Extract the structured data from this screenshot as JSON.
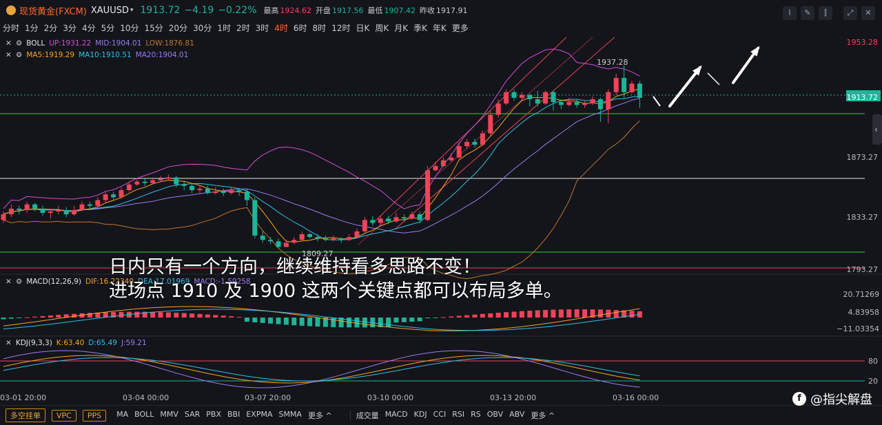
{
  "header": {
    "symbol_name": "现货黄金(FXCM)",
    "symbol_code": "XAUUSD",
    "price": "1913.72",
    "change": "−4.19",
    "change_pct": "−0.22%",
    "high_label": "最高",
    "high": "1924.62",
    "open_label": "开盘",
    "open": "1917.56",
    "low_label": "最低",
    "low": "1907.42",
    "prev_label": "昨收",
    "prev": "1917.91"
  },
  "timeframes": [
    "分时",
    "1分",
    "2分",
    "3分",
    "4分",
    "5分",
    "10分",
    "15分",
    "20分",
    "30分",
    "1时",
    "2时",
    "3时",
    "4时",
    "6时",
    "8时",
    "12时",
    "日K",
    "周K",
    "月K",
    "季K",
    "年K",
    "更多"
  ],
  "active_timeframe": "4时",
  "indicators": {
    "boll": {
      "label": "BOLL",
      "up": "UP:1931.22",
      "mid": "MID:1904.01",
      "low": "LOW:1876.81"
    },
    "ma": {
      "ma5": "MA5:1919.29",
      "ma10": "MA10:1910.51",
      "ma20": "MA20:1904.01"
    },
    "macd": {
      "label": "MACD(12,26,9)",
      "dif": "DIF:16.22340",
      "dea": "DEA:17.01969",
      "macd": "MACD:-1.59258"
    },
    "kdj": {
      "label": "KDJ(9,3,3)",
      "k": "K:63.40",
      "d": "D:65.49",
      "j": "J:59.21"
    }
  },
  "price_axis": [
    "1953.28",
    "1913.72",
    "1873.27",
    "1833.27",
    "1793.27"
  ],
  "macd_axis": [
    "20.71269",
    "4.83958",
    "−11.03354"
  ],
  "kdj_axis": [
    "80",
    "20"
  ],
  "time_axis": [
    "03-01 20:00",
    "03-04 00:00",
    "03-07 20:00",
    "03-10 00:00",
    "03-13 20:00",
    "03-16 00:00"
  ],
  "annotations": {
    "high": "1937.28",
    "low": "1809.27"
  },
  "overlay_text": [
    "日内只有一个方向，继续维持看多思路不变！",
    "进场点 1910 及 1900 这两个关键点都可以布局多单。"
  ],
  "bottom": {
    "badges": [
      "多空挂单",
      "VPC",
      "PPS"
    ],
    "main_ind": [
      "MA",
      "BOLL",
      "MMV",
      "SAR",
      "PBX",
      "BBI",
      "EXPMA",
      "SMMA",
      "更多 ^"
    ],
    "sub_ind": [
      "成交量",
      "MACD",
      "KDJ",
      "CCI",
      "RSI",
      "RS",
      "OBV",
      "ABV",
      "更多 ^"
    ]
  },
  "watermark": "@指尖解盘",
  "colors": {
    "up": "#f0435a",
    "down": "#1fb39a",
    "accent": "#ff6a2a",
    "ma5": "#f5a623",
    "ma10": "#31c0e4",
    "ma20": "#9b7cf0"
  },
  "chart_data": {
    "type": "candlestick",
    "ylim": [
      1793.27,
      1953.28
    ],
    "candles": [
      [
        1828,
        1832,
        1826,
        1834
      ],
      [
        1832,
        1836,
        1830,
        1839
      ],
      [
        1836,
        1835,
        1832,
        1838
      ],
      [
        1835,
        1839,
        1833,
        1841
      ],
      [
        1839,
        1836,
        1834,
        1840
      ],
      [
        1836,
        1833,
        1831,
        1838
      ],
      [
        1833,
        1834,
        1829,
        1836
      ],
      [
        1834,
        1835,
        1832,
        1838
      ],
      [
        1835,
        1832,
        1830,
        1837
      ],
      [
        1832,
        1835,
        1831,
        1838
      ],
      [
        1835,
        1839,
        1834,
        1841
      ],
      [
        1839,
        1838,
        1836,
        1841
      ],
      [
        1838,
        1842,
        1837,
        1844
      ],
      [
        1842,
        1846,
        1840,
        1848
      ],
      [
        1846,
        1844,
        1842,
        1848
      ],
      [
        1844,
        1849,
        1843,
        1851
      ],
      [
        1849,
        1853,
        1848,
        1855
      ],
      [
        1853,
        1855,
        1852,
        1857
      ],
      [
        1855,
        1854,
        1852,
        1857
      ],
      [
        1854,
        1856,
        1853,
        1858
      ],
      [
        1856,
        1857,
        1855,
        1859
      ],
      [
        1857,
        1858,
        1856,
        1860
      ],
      [
        1858,
        1853,
        1851,
        1859
      ],
      [
        1853,
        1852,
        1849,
        1855
      ],
      [
        1852,
        1849,
        1847,
        1854
      ],
      [
        1849,
        1850,
        1847,
        1852
      ],
      [
        1850,
        1847,
        1846,
        1852
      ],
      [
        1847,
        1848,
        1846,
        1851
      ],
      [
        1848,
        1847,
        1845,
        1850
      ],
      [
        1847,
        1849,
        1846,
        1851
      ],
      [
        1849,
        1848,
        1845,
        1850
      ],
      [
        1848,
        1842,
        1838,
        1850
      ],
      [
        1842,
        1817,
        1815,
        1844
      ],
      [
        1817,
        1814,
        1812,
        1820
      ],
      [
        1814,
        1813,
        1811,
        1816
      ],
      [
        1813,
        1809,
        1808,
        1815
      ],
      [
        1809,
        1812,
        1809,
        1814
      ],
      [
        1812,
        1814,
        1811,
        1816
      ],
      [
        1814,
        1818,
        1813,
        1820
      ],
      [
        1818,
        1816,
        1815,
        1819
      ],
      [
        1816,
        1815,
        1813,
        1818
      ],
      [
        1815,
        1814,
        1813,
        1817
      ],
      [
        1814,
        1815,
        1813,
        1817
      ],
      [
        1815,
        1814,
        1812,
        1816
      ],
      [
        1814,
        1816,
        1813,
        1818
      ],
      [
        1816,
        1820,
        1815,
        1822
      ],
      [
        1820,
        1828,
        1819,
        1830
      ],
      [
        1828,
        1826,
        1824,
        1831
      ],
      [
        1826,
        1829,
        1824,
        1831
      ],
      [
        1829,
        1827,
        1825,
        1831
      ],
      [
        1827,
        1830,
        1826,
        1833
      ],
      [
        1830,
        1829,
        1827,
        1832
      ],
      [
        1829,
        1832,
        1828,
        1834
      ],
      [
        1832,
        1828,
        1826,
        1834
      ],
      [
        1828,
        1863,
        1827,
        1866
      ],
      [
        1863,
        1866,
        1862,
        1869
      ],
      [
        1866,
        1870,
        1865,
        1872
      ],
      [
        1870,
        1872,
        1869,
        1875
      ],
      [
        1872,
        1880,
        1871,
        1883
      ],
      [
        1880,
        1883,
        1878,
        1885
      ],
      [
        1883,
        1881,
        1879,
        1885
      ],
      [
        1881,
        1889,
        1880,
        1891
      ],
      [
        1889,
        1902,
        1887,
        1905
      ],
      [
        1902,
        1910,
        1900,
        1913
      ],
      [
        1910,
        1918,
        1909,
        1920
      ],
      [
        1918,
        1914,
        1912,
        1920
      ],
      [
        1914,
        1916,
        1912,
        1918
      ],
      [
        1916,
        1913,
        1908,
        1917
      ],
      [
        1913,
        1910,
        1908,
        1919
      ],
      [
        1910,
        1918,
        1909,
        1919
      ],
      [
        1918,
        1911,
        1905,
        1919
      ],
      [
        1911,
        1909,
        1906,
        1913
      ],
      [
        1909,
        1911,
        1908,
        1914
      ],
      [
        1911,
        1909,
        1907,
        1913
      ],
      [
        1909,
        1910,
        1907,
        1912
      ],
      [
        1910,
        1913,
        1909,
        1915
      ],
      [
        1913,
        1906,
        1897,
        1914
      ],
      [
        1906,
        1918,
        1896,
        1920
      ],
      [
        1918,
        1928,
        1916,
        1931
      ],
      [
        1928,
        1918,
        1914,
        1937
      ],
      [
        1918,
        1924,
        1917,
        1926
      ],
      [
        1924,
        1914,
        1907,
        1926
      ]
    ]
  }
}
